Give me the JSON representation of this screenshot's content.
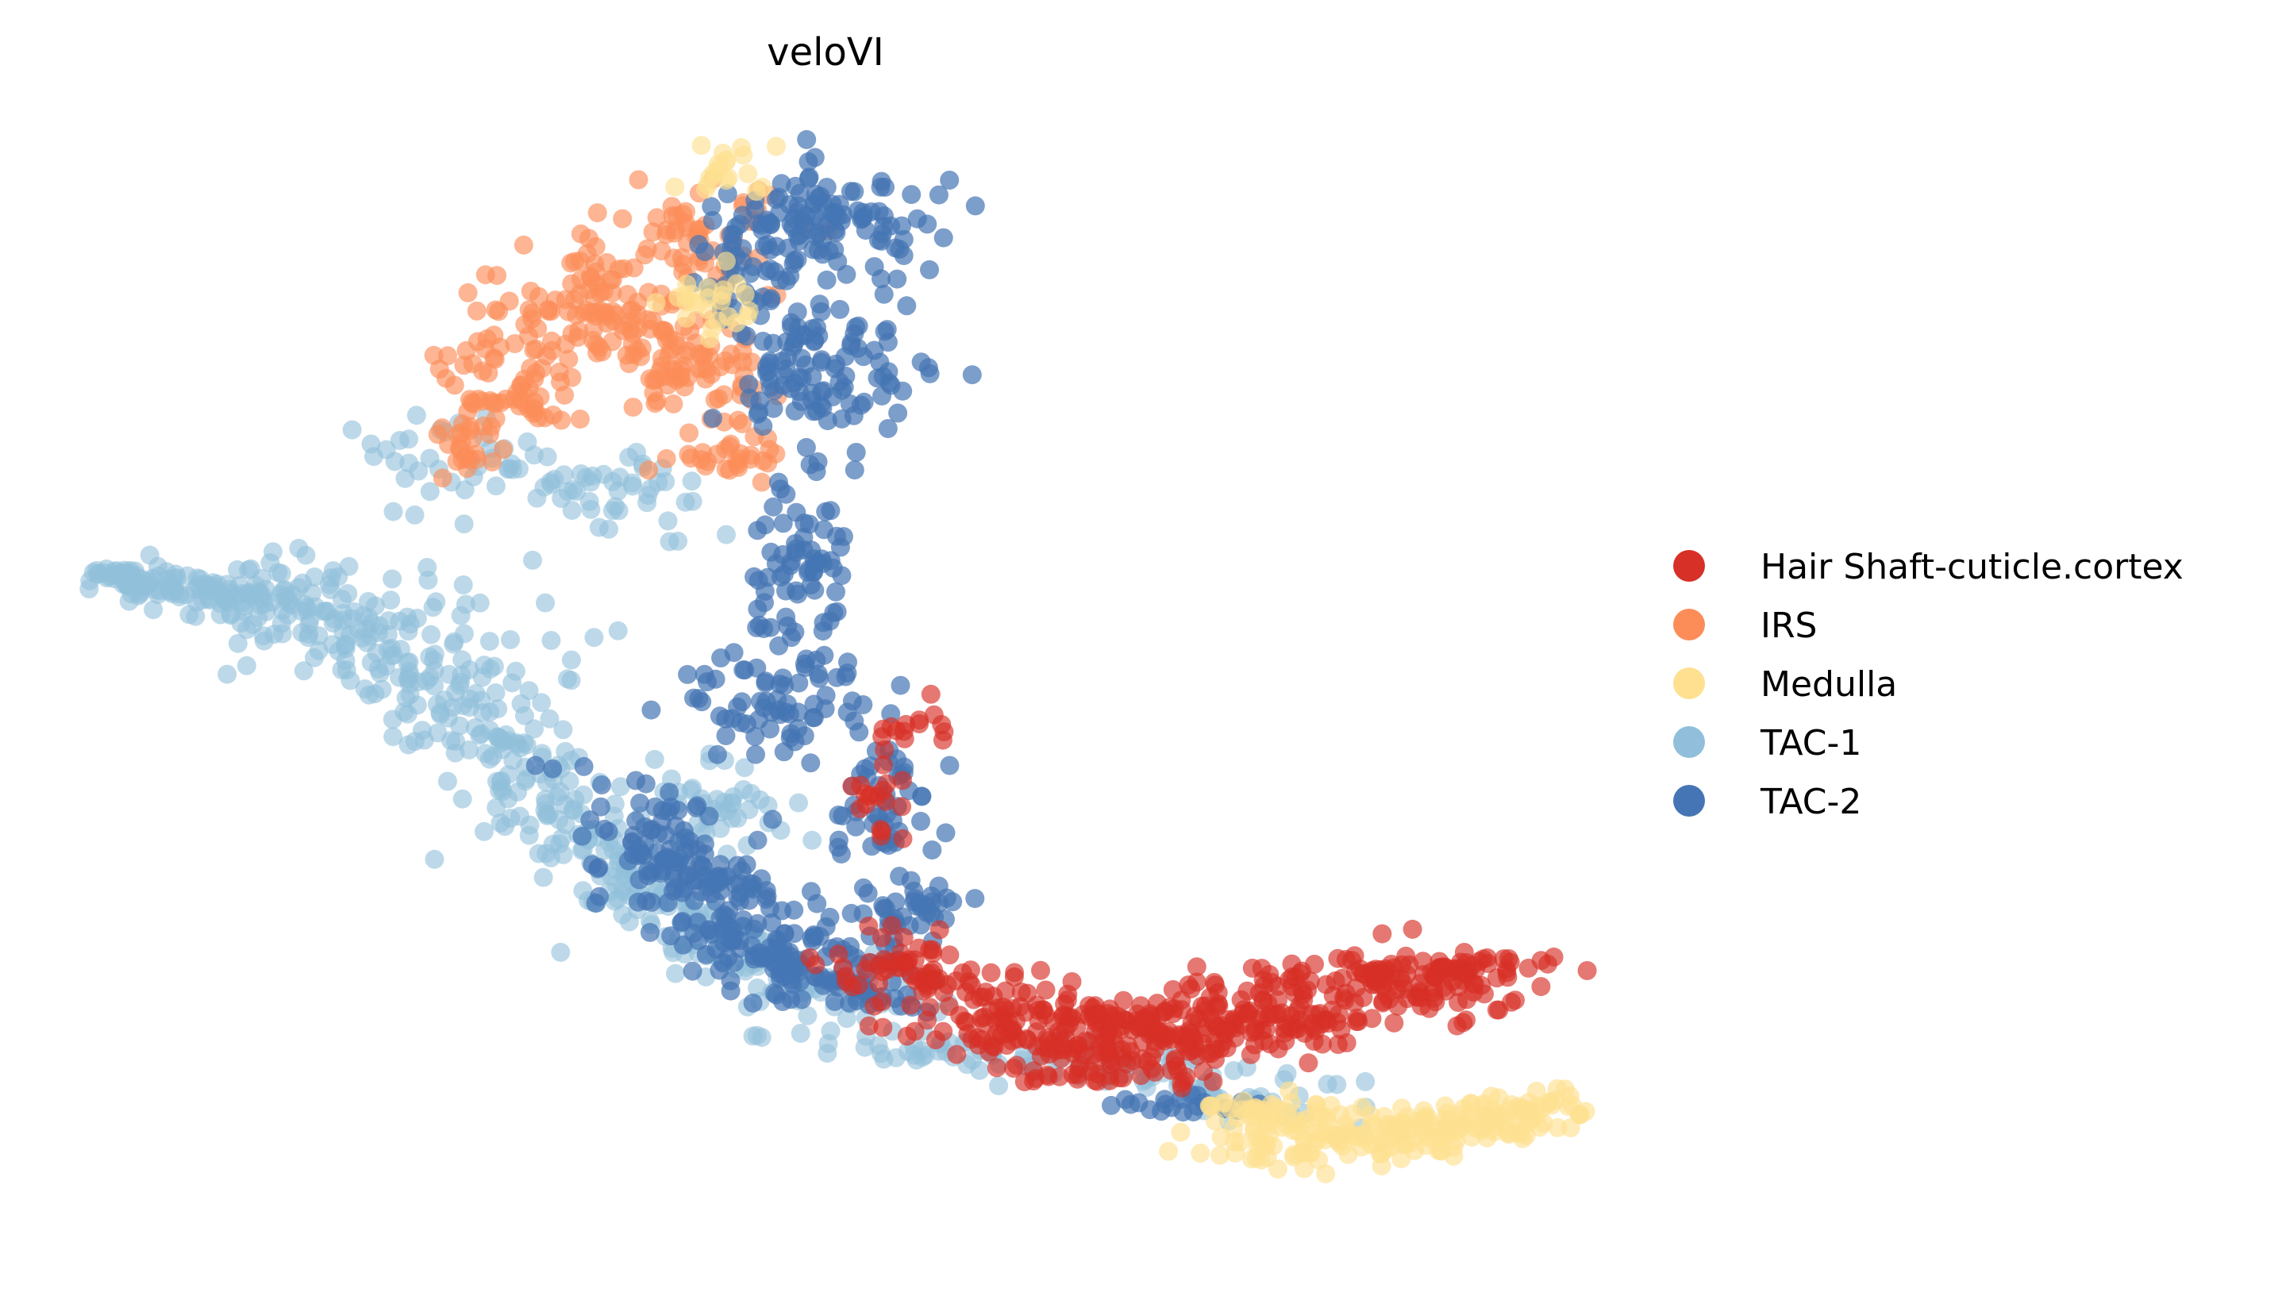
{
  "chart_data": {
    "type": "scatter",
    "title": "veloVI",
    "xlabel": "",
    "ylabel": "",
    "grid": false,
    "axes_visible": false,
    "legend_position": "right",
    "series": [
      {
        "name": "Hair Shaft-cuticle.cortex",
        "color": "#d73027",
        "alpha": 0.65
      },
      {
        "name": "IRS",
        "color": "#fc8d59",
        "alpha": 0.65
      },
      {
        "name": "Medulla",
        "color": "#fee090",
        "alpha": 0.65
      },
      {
        "name": "TAC-1",
        "color": "#91bfdb",
        "alpha": 0.6
      },
      {
        "name": "TAC-2",
        "color": "#4575b4",
        "alpha": 0.7
      }
    ]
  }
}
